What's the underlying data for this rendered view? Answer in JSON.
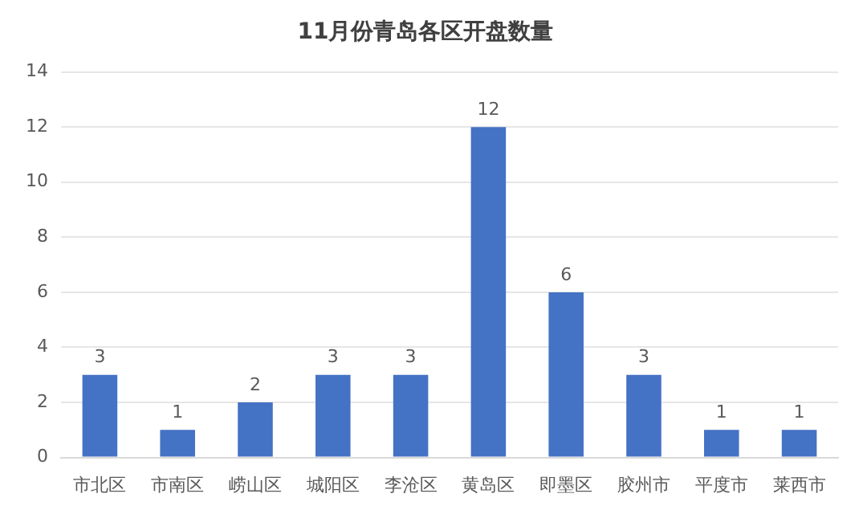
{
  "chart_data": {
    "type": "bar",
    "title": "11月份青岛各区开盘数量",
    "categories": [
      "市北区",
      "市南区",
      "崂山区",
      "城阳区",
      "李沧区",
      "黄岛区",
      "即墨区",
      "胶州市",
      "平度市",
      "莱西市"
    ],
    "values": [
      3,
      1,
      2,
      3,
      3,
      12,
      6,
      3,
      1,
      1
    ],
    "color": "#4472c4",
    "ylim": [
      0,
      14
    ],
    "yticks": [
      0,
      2,
      4,
      6,
      8,
      10,
      12,
      14
    ],
    "grid": "y",
    "data_labels": true
  }
}
